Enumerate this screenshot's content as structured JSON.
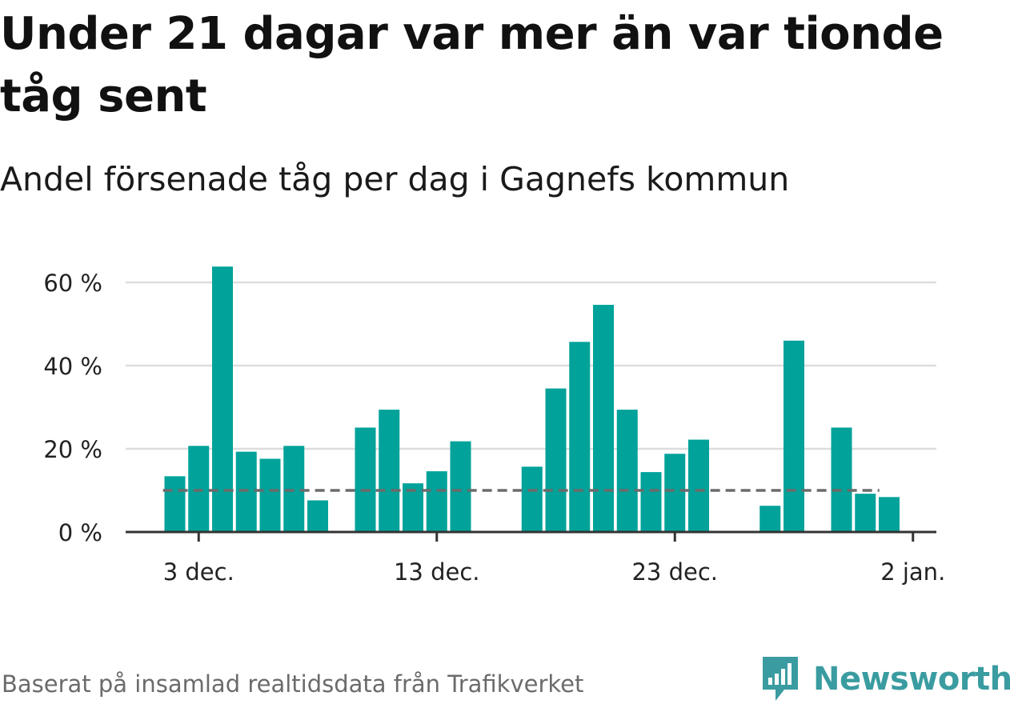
{
  "title": "Under 21 dagar var mer än var tionde tåg sent",
  "subtitle": "Andel försenade tåg per dag i Gagnefs kommun",
  "footer": "Baserat på insamlad realtidsdata från Trafikverket",
  "brand": {
    "name": "Newsworthy",
    "icon": "newsworthy-logo-icon",
    "color": "#3a9ca0"
  },
  "chart_data": {
    "type": "bar",
    "bar_color": "#00a29a",
    "reference_line": {
      "value": 10,
      "style": "dashed",
      "color": "#6b6b6b"
    },
    "ylim": [
      0,
      64
    ],
    "y_ticks": [
      {
        "value": 0,
        "label": "0 %"
      },
      {
        "value": 20,
        "label": "20 %"
      },
      {
        "value": 40,
        "label": "40 %"
      },
      {
        "value": 60,
        "label": "60 %"
      }
    ],
    "x_ticks": [
      {
        "day": 3,
        "label": "3 dec."
      },
      {
        "day": 13,
        "label": "13 dec."
      },
      {
        "day": 23,
        "label": "23 dec."
      },
      {
        "day": 33,
        "label": "2 jan."
      }
    ],
    "xlim": [
      0,
      33
    ],
    "grid": true,
    "bars": [
      {
        "day": 2,
        "value": 13.4
      },
      {
        "day": 3,
        "value": 20.7
      },
      {
        "day": 4,
        "value": 63.8
      },
      {
        "day": 5,
        "value": 19.3
      },
      {
        "day": 6,
        "value": 17.6
      },
      {
        "day": 7,
        "value": 20.7
      },
      {
        "day": 8,
        "value": 7.6
      },
      {
        "day": 10,
        "value": 25.1
      },
      {
        "day": 11,
        "value": 29.4
      },
      {
        "day": 12,
        "value": 11.7
      },
      {
        "day": 13,
        "value": 14.6
      },
      {
        "day": 14,
        "value": 21.8
      },
      {
        "day": 17,
        "value": 15.7
      },
      {
        "day": 18,
        "value": 34.5
      },
      {
        "day": 19,
        "value": 45.7
      },
      {
        "day": 20,
        "value": 54.6
      },
      {
        "day": 21,
        "value": 29.4
      },
      {
        "day": 22,
        "value": 14.4
      },
      {
        "day": 23,
        "value": 18.8
      },
      {
        "day": 24,
        "value": 22.2
      },
      {
        "day": 27,
        "value": 6.3
      },
      {
        "day": 28,
        "value": 46.0
      },
      {
        "day": 30,
        "value": 25.1
      },
      {
        "day": 31,
        "value": 9.2
      },
      {
        "day": 32,
        "value": 8.4
      }
    ]
  }
}
